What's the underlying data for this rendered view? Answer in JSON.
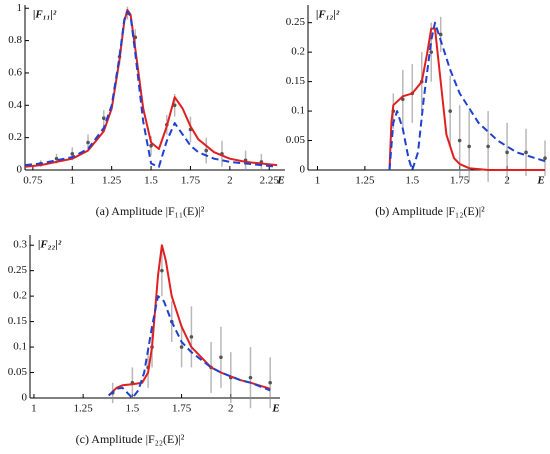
{
  "chart_data": [
    {
      "type": "line",
      "ylabel": "|F₁₁|²",
      "xlabel": "E",
      "caption": "(a) Amplitude |F₁₁(E)|²",
      "xlim": [
        0.7,
        2.35
      ],
      "xticks": [
        0.75,
        1,
        1.25,
        1.5,
        1.75,
        2,
        2.25
      ],
      "ylim": [
        0,
        1.02
      ],
      "yticks": [
        0,
        0.2,
        0.4,
        0.6,
        0.8,
        1
      ],
      "series": [
        {
          "color": "#e02020",
          "dashed": false,
          "x": [
            0.7,
            0.8,
            0.9,
            1.0,
            1.1,
            1.2,
            1.25,
            1.3,
            1.33,
            1.35,
            1.37,
            1.4,
            1.45,
            1.5,
            1.55,
            1.6,
            1.65,
            1.7,
            1.75,
            1.8,
            1.9,
            2.0,
            2.1,
            2.2,
            2.3
          ],
          "values": [
            0.02,
            0.03,
            0.05,
            0.07,
            0.12,
            0.24,
            0.38,
            0.68,
            0.92,
            0.99,
            0.96,
            0.75,
            0.38,
            0.17,
            0.13,
            0.27,
            0.45,
            0.38,
            0.27,
            0.19,
            0.11,
            0.07,
            0.05,
            0.04,
            0.03
          ]
        },
        {
          "color": "#2040d0",
          "dashed": true,
          "x": [
            0.7,
            0.8,
            0.9,
            1.0,
            1.1,
            1.2,
            1.25,
            1.3,
            1.33,
            1.35,
            1.37,
            1.4,
            1.45,
            1.5,
            1.55,
            1.6,
            1.65,
            1.7,
            1.75,
            1.8,
            1.9,
            2.0,
            2.1,
            2.2,
            2.3
          ],
          "values": [
            0.03,
            0.04,
            0.06,
            0.08,
            0.13,
            0.26,
            0.4,
            0.7,
            0.93,
            0.98,
            0.95,
            0.72,
            0.3,
            0.04,
            0.02,
            0.18,
            0.29,
            0.22,
            0.15,
            0.11,
            0.07,
            0.05,
            0.04,
            0.03,
            0.02
          ]
        }
      ],
      "points": {
        "color": "#888888",
        "x": [
          0.8,
          0.9,
          1.0,
          1.1,
          1.2,
          1.3,
          1.35,
          1.4,
          1.5,
          1.6,
          1.65,
          1.75,
          1.85,
          1.95,
          2.1,
          2.2
        ],
        "values": [
          0.04,
          0.07,
          0.1,
          0.17,
          0.32,
          0.7,
          0.97,
          0.82,
          0.15,
          0.28,
          0.4,
          0.25,
          0.12,
          0.1,
          0.06,
          0.05
        ],
        "errors": [
          0.02,
          0.03,
          0.04,
          0.05,
          0.05,
          0.05,
          0.04,
          0.05,
          0.06,
          0.06,
          0.07,
          0.08,
          0.08,
          0.08,
          0.06,
          0.05
        ]
      }
    },
    {
      "type": "line",
      "ylabel": "|F₁₂|²",
      "xlabel": "E",
      "caption": "(b) Amplitude |F₁₂(E)|²",
      "xlim": [
        0.95,
        2.2
      ],
      "xticks": [
        1,
        1.25,
        1.5,
        1.75,
        2
      ],
      "ylim": [
        0,
        0.28
      ],
      "yticks": [
        0,
        0.05,
        0.1,
        0.15,
        0.2,
        0.25
      ],
      "series": [
        {
          "color": "#e02020",
          "dashed": false,
          "x": [
            1.38,
            1.39,
            1.4,
            1.45,
            1.5,
            1.55,
            1.58,
            1.6,
            1.62,
            1.65,
            1.68,
            1.72,
            1.75,
            1.8,
            1.9,
            2.0,
            2.1,
            2.2
          ],
          "values": [
            0,
            0.08,
            0.11,
            0.125,
            0.13,
            0.15,
            0.2,
            0.24,
            0.24,
            0.15,
            0.06,
            0.02,
            0.01,
            0.003,
            0,
            0,
            0,
            0
          ]
        },
        {
          "color": "#2040d0",
          "dashed": true,
          "x": [
            1.38,
            1.4,
            1.42,
            1.45,
            1.48,
            1.5,
            1.53,
            1.56,
            1.6,
            1.62,
            1.65,
            1.7,
            1.75,
            1.85,
            1.95,
            2.05,
            2.15,
            2.2
          ],
          "values": [
            0,
            0.08,
            0.1,
            0.07,
            0.02,
            0,
            0.03,
            0.12,
            0.22,
            0.25,
            0.22,
            0.17,
            0.13,
            0.08,
            0.05,
            0.03,
            0.02,
            0.015
          ]
        }
      ],
      "points": {
        "color": "#888888",
        "x": [
          1.4,
          1.45,
          1.5,
          1.55,
          1.6,
          1.65,
          1.7,
          1.75,
          1.8,
          1.9,
          2.0,
          2.1,
          2.2
        ],
        "values": [
          0.1,
          0.12,
          0.13,
          0.15,
          0.2,
          0.23,
          0.1,
          0.05,
          0.04,
          0.04,
          0.03,
          0.03,
          0.02
        ],
        "errors": [
          0.03,
          0.05,
          0.05,
          0.05,
          0.05,
          0.03,
          0.06,
          0.06,
          0.06,
          0.06,
          0.05,
          0.04,
          0.03
        ]
      }
    },
    {
      "type": "line",
      "ylabel": "|F₂₂|²",
      "xlabel": "E",
      "caption": "(c) Amplitude |F₂₂(E)|²",
      "xlim": [
        0.98,
        2.25
      ],
      "xticks": [
        1,
        1.25,
        1.5,
        1.75,
        2
      ],
      "ylim": [
        0,
        0.32
      ],
      "yticks": [
        0,
        0.05,
        0.1,
        0.15,
        0.2,
        0.25,
        0.3
      ],
      "series": [
        {
          "color": "#e02020",
          "dashed": false,
          "x": [
            1.38,
            1.42,
            1.45,
            1.5,
            1.55,
            1.58,
            1.6,
            1.63,
            1.65,
            1.67,
            1.7,
            1.75,
            1.8,
            1.9,
            1.95,
            2.05,
            2.1,
            2.2
          ],
          "values": [
            0.005,
            0.02,
            0.025,
            0.027,
            0.03,
            0.05,
            0.1,
            0.24,
            0.3,
            0.27,
            0.2,
            0.14,
            0.1,
            0.06,
            0.05,
            0.035,
            0.03,
            0.018
          ]
        },
        {
          "color": "#2040d0",
          "dashed": true,
          "x": [
            1.38,
            1.42,
            1.45,
            1.48,
            1.5,
            1.53,
            1.56,
            1.6,
            1.63,
            1.66,
            1.7,
            1.75,
            1.8,
            1.9,
            1.95,
            2.05,
            2.1,
            2.2
          ],
          "values": [
            0.005,
            0.018,
            0.02,
            0.008,
            0,
            0.015,
            0.05,
            0.14,
            0.2,
            0.19,
            0.15,
            0.11,
            0.09,
            0.06,
            0.05,
            0.035,
            0.03,
            0.015
          ]
        }
      ],
      "points": {
        "color": "#888888",
        "x": [
          1.4,
          1.5,
          1.58,
          1.6,
          1.65,
          1.7,
          1.75,
          1.8,
          1.9,
          1.95,
          2.0,
          2.1,
          2.2
        ],
        "values": [
          0.01,
          0.03,
          0.06,
          0.1,
          0.25,
          0.15,
          0.1,
          0.12,
          0.06,
          0.08,
          0.04,
          0.04,
          0.03
        ],
        "errors": [
          0.02,
          0.03,
          0.04,
          0.04,
          0.05,
          0.04,
          0.04,
          0.06,
          0.05,
          0.06,
          0.05,
          0.06,
          0.05
        ]
      }
    }
  ]
}
